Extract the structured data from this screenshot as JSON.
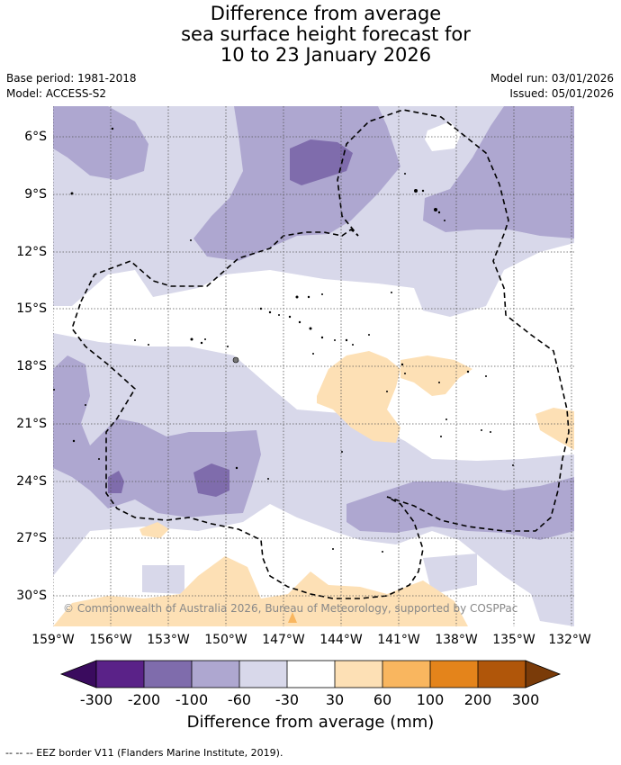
{
  "title": {
    "line1": "Difference from average",
    "line2": "sea surface height forecast for",
    "line3": "10 to 23 January 2026"
  },
  "meta": {
    "base_period": "Base period: 1981-2018",
    "model": "Model: ACCESS-S2",
    "model_run": "Model run: 03/01/2026",
    "issued": "Issued: 05/01/2026"
  },
  "map": {
    "lat_ticks": [
      "6°S",
      "9°S",
      "12°S",
      "15°S",
      "18°S",
      "21°S",
      "24°S",
      "27°S",
      "30°S"
    ],
    "lon_ticks": [
      "159°W",
      "156°W",
      "153°W",
      "150°W",
      "147°W",
      "144°W",
      "141°W",
      "138°W",
      "135°W",
      "132°W"
    ],
    "copyright": "© Commonwealth of Australia 2026, Bureau of Meteorology, supported by COSPPac"
  },
  "colorbar": {
    "labels": [
      "-300",
      "-200",
      "-100",
      "-60",
      "-30",
      "30",
      "60",
      "100",
      "200",
      "300"
    ],
    "colors": [
      "#3a0b5e",
      "#5a2288",
      "#7f6cac",
      "#aea7d0",
      "#d8d8ea",
      "#ffffff",
      "#fde0b5",
      "#f9b65f",
      "#e4841b",
      "#b0560a",
      "#7a3b09"
    ],
    "title": "Difference from average (mm)"
  },
  "footnote": "--  --  -- EEZ border V11 (Flanders Marine Institute, 2019)."
}
